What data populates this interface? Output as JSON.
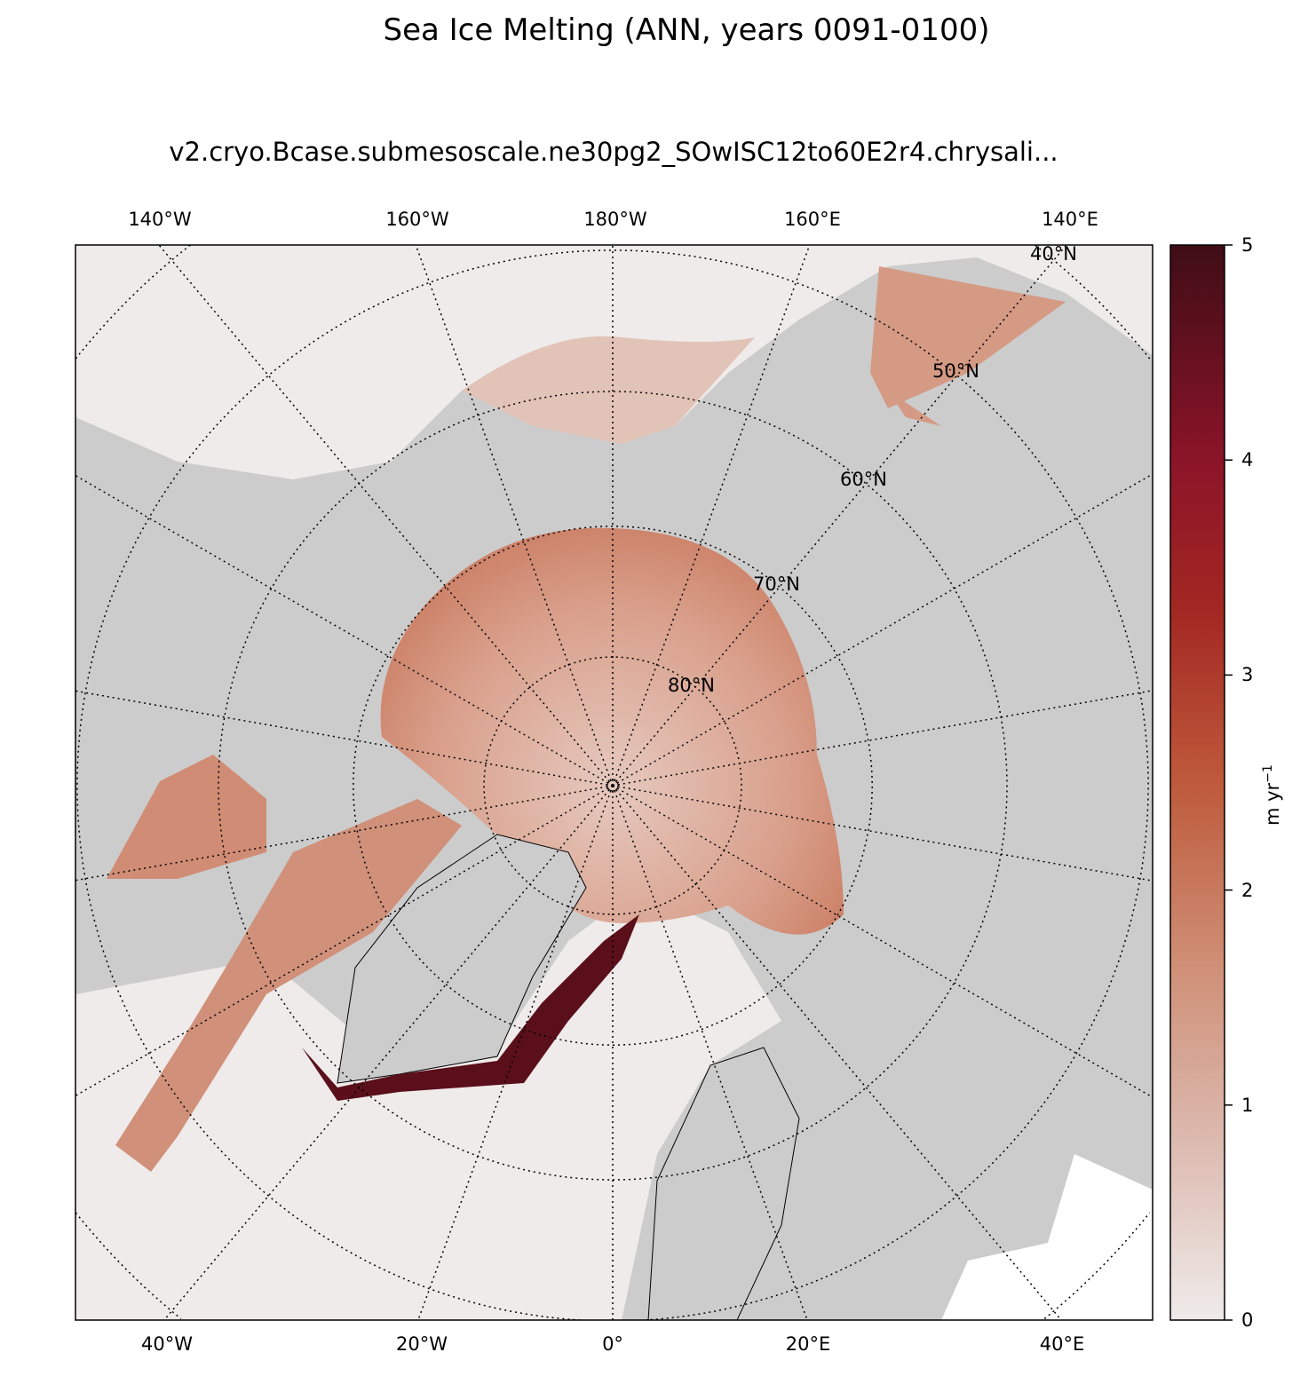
{
  "title": "Sea Ice Melting (ANN, years 0091-0100)",
  "subtitle": "v2.cryo.Bcase.submesoscale.ne30pg2_SOwISC12to60E2r4.chrysali...",
  "map": {
    "projection": "north-polar-stereographic",
    "lon_labels_top": [
      "140°W",
      "160°W",
      "180°W",
      "160°E",
      "140°E"
    ],
    "lon_labels_bottom": [
      "40°W",
      "20°W",
      "0°",
      "20°E",
      "40°E"
    ],
    "lat_labels": [
      "40°N",
      "50°N",
      "60°N",
      "70°N",
      "80°N"
    ],
    "land_color": "#cccccc",
    "ocean_zero_color": "#efebea"
  },
  "colorbar": {
    "label": "m yr",
    "label_exponent": "−1",
    "vmin": 0,
    "vmax": 5,
    "ticks": [
      "0",
      "1",
      "2",
      "3",
      "4",
      "5"
    ],
    "colors": [
      "#efebea",
      "#dcb9ae",
      "#cf8f76",
      "#be5a3b",
      "#a32722",
      "#8b1428",
      "#3f0d16"
    ]
  }
}
